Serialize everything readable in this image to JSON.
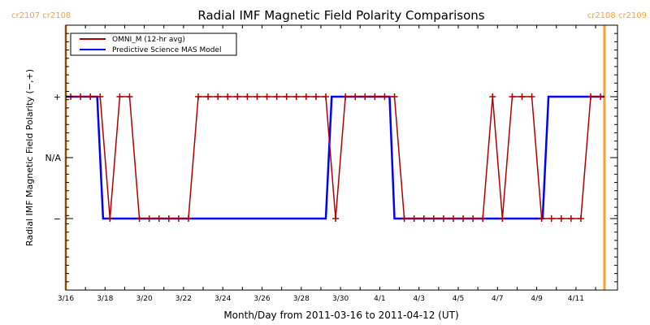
{
  "chart_data": {
    "type": "line",
    "title": "Radial IMF Magnetic Field Polarity Comparisons",
    "xlabel": "Month/Day from 2011-03-16 to 2011-04-12 (UT)",
    "ylabel": "Radial IMF Magnetic Field Polarity (−,+)",
    "xlim_days": [
      0,
      27.5
    ],
    "ylim": [
      -2,
      2
    ],
    "x_ticks": [
      {
        "day": 0,
        "label": "3/16"
      },
      {
        "day": 2,
        "label": "3/18"
      },
      {
        "day": 4,
        "label": "3/20"
      },
      {
        "day": 6,
        "label": "3/22"
      },
      {
        "day": 8,
        "label": "3/24"
      },
      {
        "day": 10,
        "label": "3/26"
      },
      {
        "day": 12,
        "label": "3/28"
      },
      {
        "day": 14,
        "label": "3/30"
      },
      {
        "day": 16,
        "label": "4/1"
      },
      {
        "day": 18,
        "label": "4/3"
      },
      {
        "day": 20,
        "label": "4/5"
      },
      {
        "day": 22,
        "label": "4/7"
      },
      {
        "day": 24,
        "label": "4/9"
      },
      {
        "day": 26,
        "label": "4/11"
      }
    ],
    "y_ticks": [
      {
        "value": 1,
        "label": "+"
      },
      {
        "value": 0,
        "label": "N/A"
      },
      {
        "value": -1,
        "label": "−"
      }
    ],
    "legend": {
      "placement": "top-left",
      "entries": [
        {
          "name": "OMNI_M (12-hr avg)",
          "color": "#b00000"
        },
        {
          "name": "Predictive Science MAS Model",
          "color": "#0000ff"
        }
      ]
    },
    "carrington_markers": [
      {
        "day": 0,
        "label": "cr2107 cr2108",
        "color": "#f7a23a"
      },
      {
        "day": 27.45,
        "label": "cr2108 cr2109",
        "color": "#f7a23a"
      }
    ],
    "series": [
      {
        "name": "OMNI_M (12-hr avg)",
        "color": "#b00000",
        "x_days": [
          0.25,
          0.75,
          1.25,
          1.75,
          2.25,
          2.75,
          3.25,
          3.75,
          4.25,
          4.75,
          5.25,
          5.75,
          6.25,
          6.75,
          7.25,
          7.75,
          8.25,
          8.75,
          9.25,
          9.75,
          10.25,
          10.75,
          11.25,
          11.75,
          12.25,
          12.75,
          13.25,
          13.75,
          14.25,
          14.75,
          15.25,
          15.75,
          16.25,
          16.75,
          17.25,
          17.75,
          18.25,
          18.75,
          19.25,
          19.75,
          20.25,
          20.75,
          21.25,
          21.75,
          22.25,
          22.75,
          23.25,
          23.75,
          24.25,
          24.75,
          25.25,
          25.75,
          26.25,
          26.75,
          27.25
        ],
        "values": [
          1,
          1,
          1,
          1,
          -1,
          1,
          1,
          -1,
          -1,
          -1,
          -1,
          -1,
          -1,
          1,
          1,
          1,
          1,
          1,
          1,
          1,
          1,
          1,
          1,
          1,
          1,
          1,
          1,
          -1,
          1,
          1,
          1,
          1,
          1,
          1,
          -1,
          -1,
          -1,
          -1,
          -1,
          -1,
          -1,
          -1,
          -1,
          1,
          -1,
          1,
          1,
          1,
          -1,
          -1,
          -1,
          -1,
          -1,
          1,
          1
        ]
      },
      {
        "name": "Predictive Science MAS Model",
        "color": "#0000ff",
        "steps": [
          {
            "from": 0,
            "to": 1.6,
            "value": 1
          },
          {
            "from": 1.9,
            "to": 13.25,
            "value": -1
          },
          {
            "from": 13.55,
            "to": 16.5,
            "value": 1
          },
          {
            "from": 16.75,
            "to": 24.3,
            "value": -1
          },
          {
            "from": 24.6,
            "to": 27.45,
            "value": 1
          }
        ]
      }
    ]
  }
}
